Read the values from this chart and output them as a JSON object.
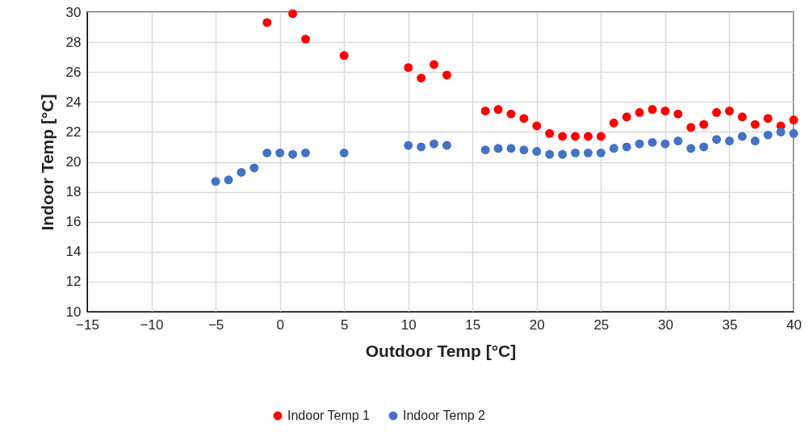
{
  "chart_data": {
    "type": "scatter",
    "xlabel": "Outdoor Temp [°C]",
    "ylabel": "Indoor Temp [°C]",
    "xlim": [
      -15,
      40
    ],
    "xticks": [
      -15,
      -10,
      -5,
      0,
      5,
      10,
      15,
      20,
      25,
      30,
      35,
      40
    ],
    "ylim": [
      10,
      30
    ],
    "yticks": [
      10,
      12,
      14,
      16,
      18,
      20,
      22,
      24,
      26,
      28,
      30
    ],
    "grid": true,
    "legend": "bottom",
    "marker": "circle",
    "series": [
      {
        "name": "Indoor Temp 1",
        "color": "#ff0000",
        "x": [
          -1,
          1,
          2,
          5,
          10,
          11,
          12,
          13,
          16,
          17,
          18,
          19,
          20,
          21,
          22,
          23,
          24,
          25,
          26,
          27,
          28,
          29,
          30,
          31,
          32,
          33,
          34,
          35,
          36,
          37,
          38,
          39,
          40
        ],
        "values": [
          29.3,
          29.9,
          28.2,
          27.1,
          26.3,
          25.6,
          26.5,
          25.8,
          23.4,
          23.5,
          23.2,
          22.9,
          22.4,
          21.9,
          21.7,
          21.7,
          21.7,
          21.7,
          22.6,
          23.0,
          23.3,
          23.5,
          23.4,
          23.2,
          22.3,
          22.5,
          23.3,
          23.4,
          23.0,
          22.5,
          22.9,
          22.4,
          22.8
        ]
      },
      {
        "name": "Indoor Temp 2",
        "color": "#4472c4",
        "x": [
          -5,
          -4,
          -3,
          -2,
          -1,
          0,
          1,
          2,
          5,
          10,
          11,
          12,
          13,
          16,
          17,
          18,
          19,
          20,
          21,
          22,
          23,
          24,
          25,
          26,
          27,
          28,
          29,
          30,
          31,
          32,
          33,
          34,
          35,
          36,
          37,
          38,
          39,
          40
        ],
        "values": [
          18.7,
          18.8,
          19.3,
          19.6,
          20.6,
          20.6,
          20.5,
          20.6,
          20.6,
          21.1,
          21.0,
          21.2,
          21.1,
          20.8,
          20.9,
          20.9,
          20.8,
          20.7,
          20.5,
          20.5,
          20.6,
          20.6,
          20.6,
          20.9,
          21.0,
          21.2,
          21.3,
          21.2,
          21.4,
          20.9,
          21.0,
          21.5,
          21.4,
          21.7,
          21.4,
          21.8,
          22.0,
          21.9
        ]
      }
    ]
  }
}
